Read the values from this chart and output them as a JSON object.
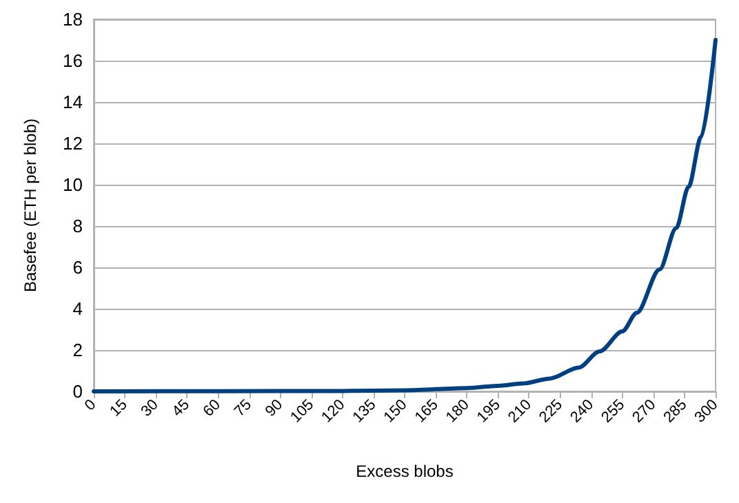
{
  "chart_data": {
    "type": "line",
    "xlabel": "Excess blobs",
    "ylabel": "Basefee (ETH per blob)",
    "x": [
      0,
      60,
      120,
      150,
      180,
      195,
      207,
      220,
      234,
      244,
      255,
      262,
      273,
      281,
      287,
      293,
      300
    ],
    "series": [
      {
        "color": "#004080",
        "values": [
          0,
          0.01,
          0.02,
          0.05,
          0.16,
          0.27,
          0.38,
          0.62,
          1.15,
          1.93,
          2.9,
          3.8,
          5.9,
          7.9,
          9.9,
          12.3,
          17
        ]
      }
    ],
    "xlim": [
      0,
      300
    ],
    "xticks": [
      0,
      15,
      30,
      45,
      60,
      75,
      90,
      105,
      120,
      135,
      150,
      165,
      180,
      195,
      210,
      225,
      240,
      255,
      270,
      285,
      300
    ],
    "ylim": [
      0,
      18
    ],
    "yticks": [
      0,
      2,
      4,
      6,
      8,
      10,
      12,
      14,
      16,
      18
    ],
    "grid": "y",
    "marker": "none",
    "line_style": "solid"
  }
}
